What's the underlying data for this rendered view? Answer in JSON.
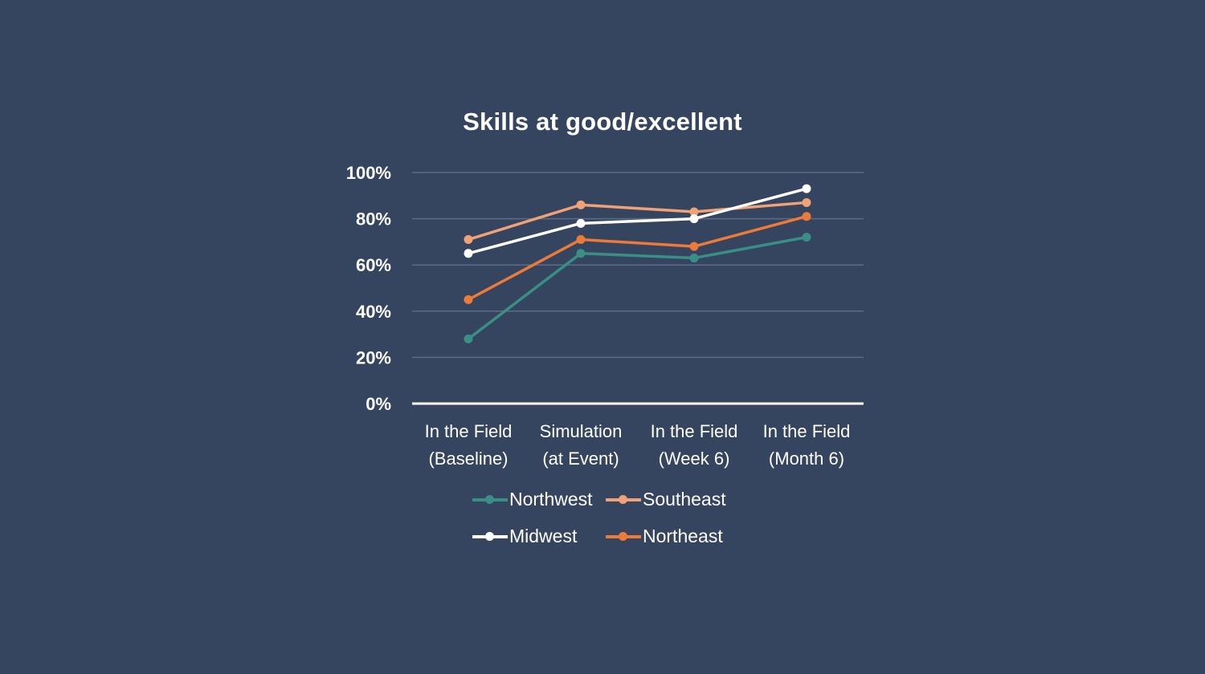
{
  "chart_data": {
    "type": "line",
    "title": "Skills at good/excellent",
    "xlabel": "",
    "ylabel": "",
    "ylim": [
      0,
      100
    ],
    "y_ticks": [
      "0%",
      "20%",
      "40%",
      "60%",
      "80%",
      "100%"
    ],
    "categories": [
      [
        "In the Field",
        "(Baseline)"
      ],
      [
        "Simulation",
        "(at Event)"
      ],
      [
        "In the Field",
        "(Week 6)"
      ],
      [
        "In the Field",
        "(Month 6)"
      ]
    ],
    "series": [
      {
        "name": "Northwest",
        "color": "#3a8f84",
        "values": [
          28,
          65,
          63,
          72
        ]
      },
      {
        "name": "Southeast",
        "color": "#f0a277",
        "values": [
          71,
          86,
          83,
          87
        ]
      },
      {
        "name": "Midwest",
        "color": "#ffffff",
        "values": [
          65,
          78,
          80,
          93
        ]
      },
      {
        "name": "Northeast",
        "color": "#ec7a38",
        "values": [
          45,
          71,
          68,
          81
        ]
      }
    ],
    "grid": true,
    "legend_position": "bottom"
  },
  "background": "#35445f",
  "gridline_color": "#5d6b86"
}
